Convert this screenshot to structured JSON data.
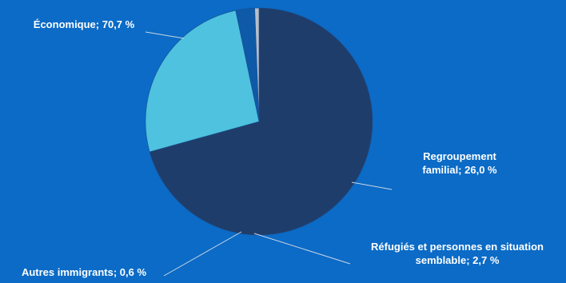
{
  "chart_data": {
    "type": "pie",
    "title": "",
    "slices": [
      {
        "label": "Économique",
        "value": 70.7,
        "color": "#1f3d6b",
        "label_lines": [
          "Économique; 70,7 %"
        ]
      },
      {
        "label": "Regroupement familial",
        "value": 26.0,
        "color": "#4ec2df",
        "label_lines": [
          "Regroupement",
          "familial; 26,0 %"
        ]
      },
      {
        "label": "Réfugiés et personnes en situation semblable",
        "value": 2.7,
        "color": "#0e5aa8",
        "label_lines": [
          "Réfugiés et personnes en situation",
          "semblable; 2,7 %"
        ]
      },
      {
        "label": "Autres immigrants",
        "value": 0.6,
        "color": "#b9bfc9",
        "label_lines": [
          "Autres immigrants; 0,6 %"
        ]
      }
    ],
    "value_unit": "%",
    "start_angle_deg": 90,
    "direction": "clockwise",
    "legend": "none",
    "background": "#0b6bc6"
  }
}
